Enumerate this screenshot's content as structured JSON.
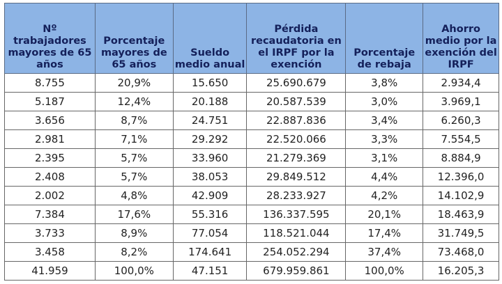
{
  "headers": [
    "Nº trabajadores mayores de 65 años",
    "Porcentaje mayores de 65 años",
    "Sueldo medio anual",
    "Pérdida recaudatoria en el IRPF por la exención",
    "Porcentaje de rebaja",
    "Ahorro medio por la exención del IRPF"
  ],
  "rows": [
    [
      "8.755",
      "20,9%",
      "15.650",
      "25.690.679",
      "3,8%",
      "2.934,4"
    ],
    [
      "5.187",
      "12,4%",
      "20.188",
      "20.587.539",
      "3,0%",
      "3.969,1"
    ],
    [
      "3.656",
      "8,7%",
      "24.751",
      "22.887.836",
      "3,4%",
      "6.260,3"
    ],
    [
      "2.981",
      "7,1%",
      "29.292",
      "22.520.066",
      "3,3%",
      "7.554,5"
    ],
    [
      "2.395",
      "5,7%",
      "33.960",
      "21.279.369",
      "3,1%",
      "8.884,9"
    ],
    [
      "2.408",
      "5,7%",
      "38.053",
      "29.849.512",
      "4,4%",
      "12.396,0"
    ],
    [
      "2.002",
      "4,8%",
      "42.909",
      "28.233.927",
      "4,2%",
      "14.102,9"
    ],
    [
      "7.384",
      "17,6%",
      "55.316",
      "136.337.595",
      "20,1%",
      "18.463,9"
    ],
    [
      "3.733",
      "8,9%",
      "77.054",
      "118.521.044",
      "17,4%",
      "31.749,5"
    ],
    [
      "3.458",
      "8,2%",
      "174.641",
      "254.052.294",
      "37,4%",
      "73.468,0"
    ],
    [
      "41.959",
      "100,0%",
      "47.151",
      "679.959.861",
      "100,0%",
      "16.205,3"
    ]
  ],
  "colors": {
    "header_bg": "#8db4e5",
    "header_text": "#14205a"
  }
}
